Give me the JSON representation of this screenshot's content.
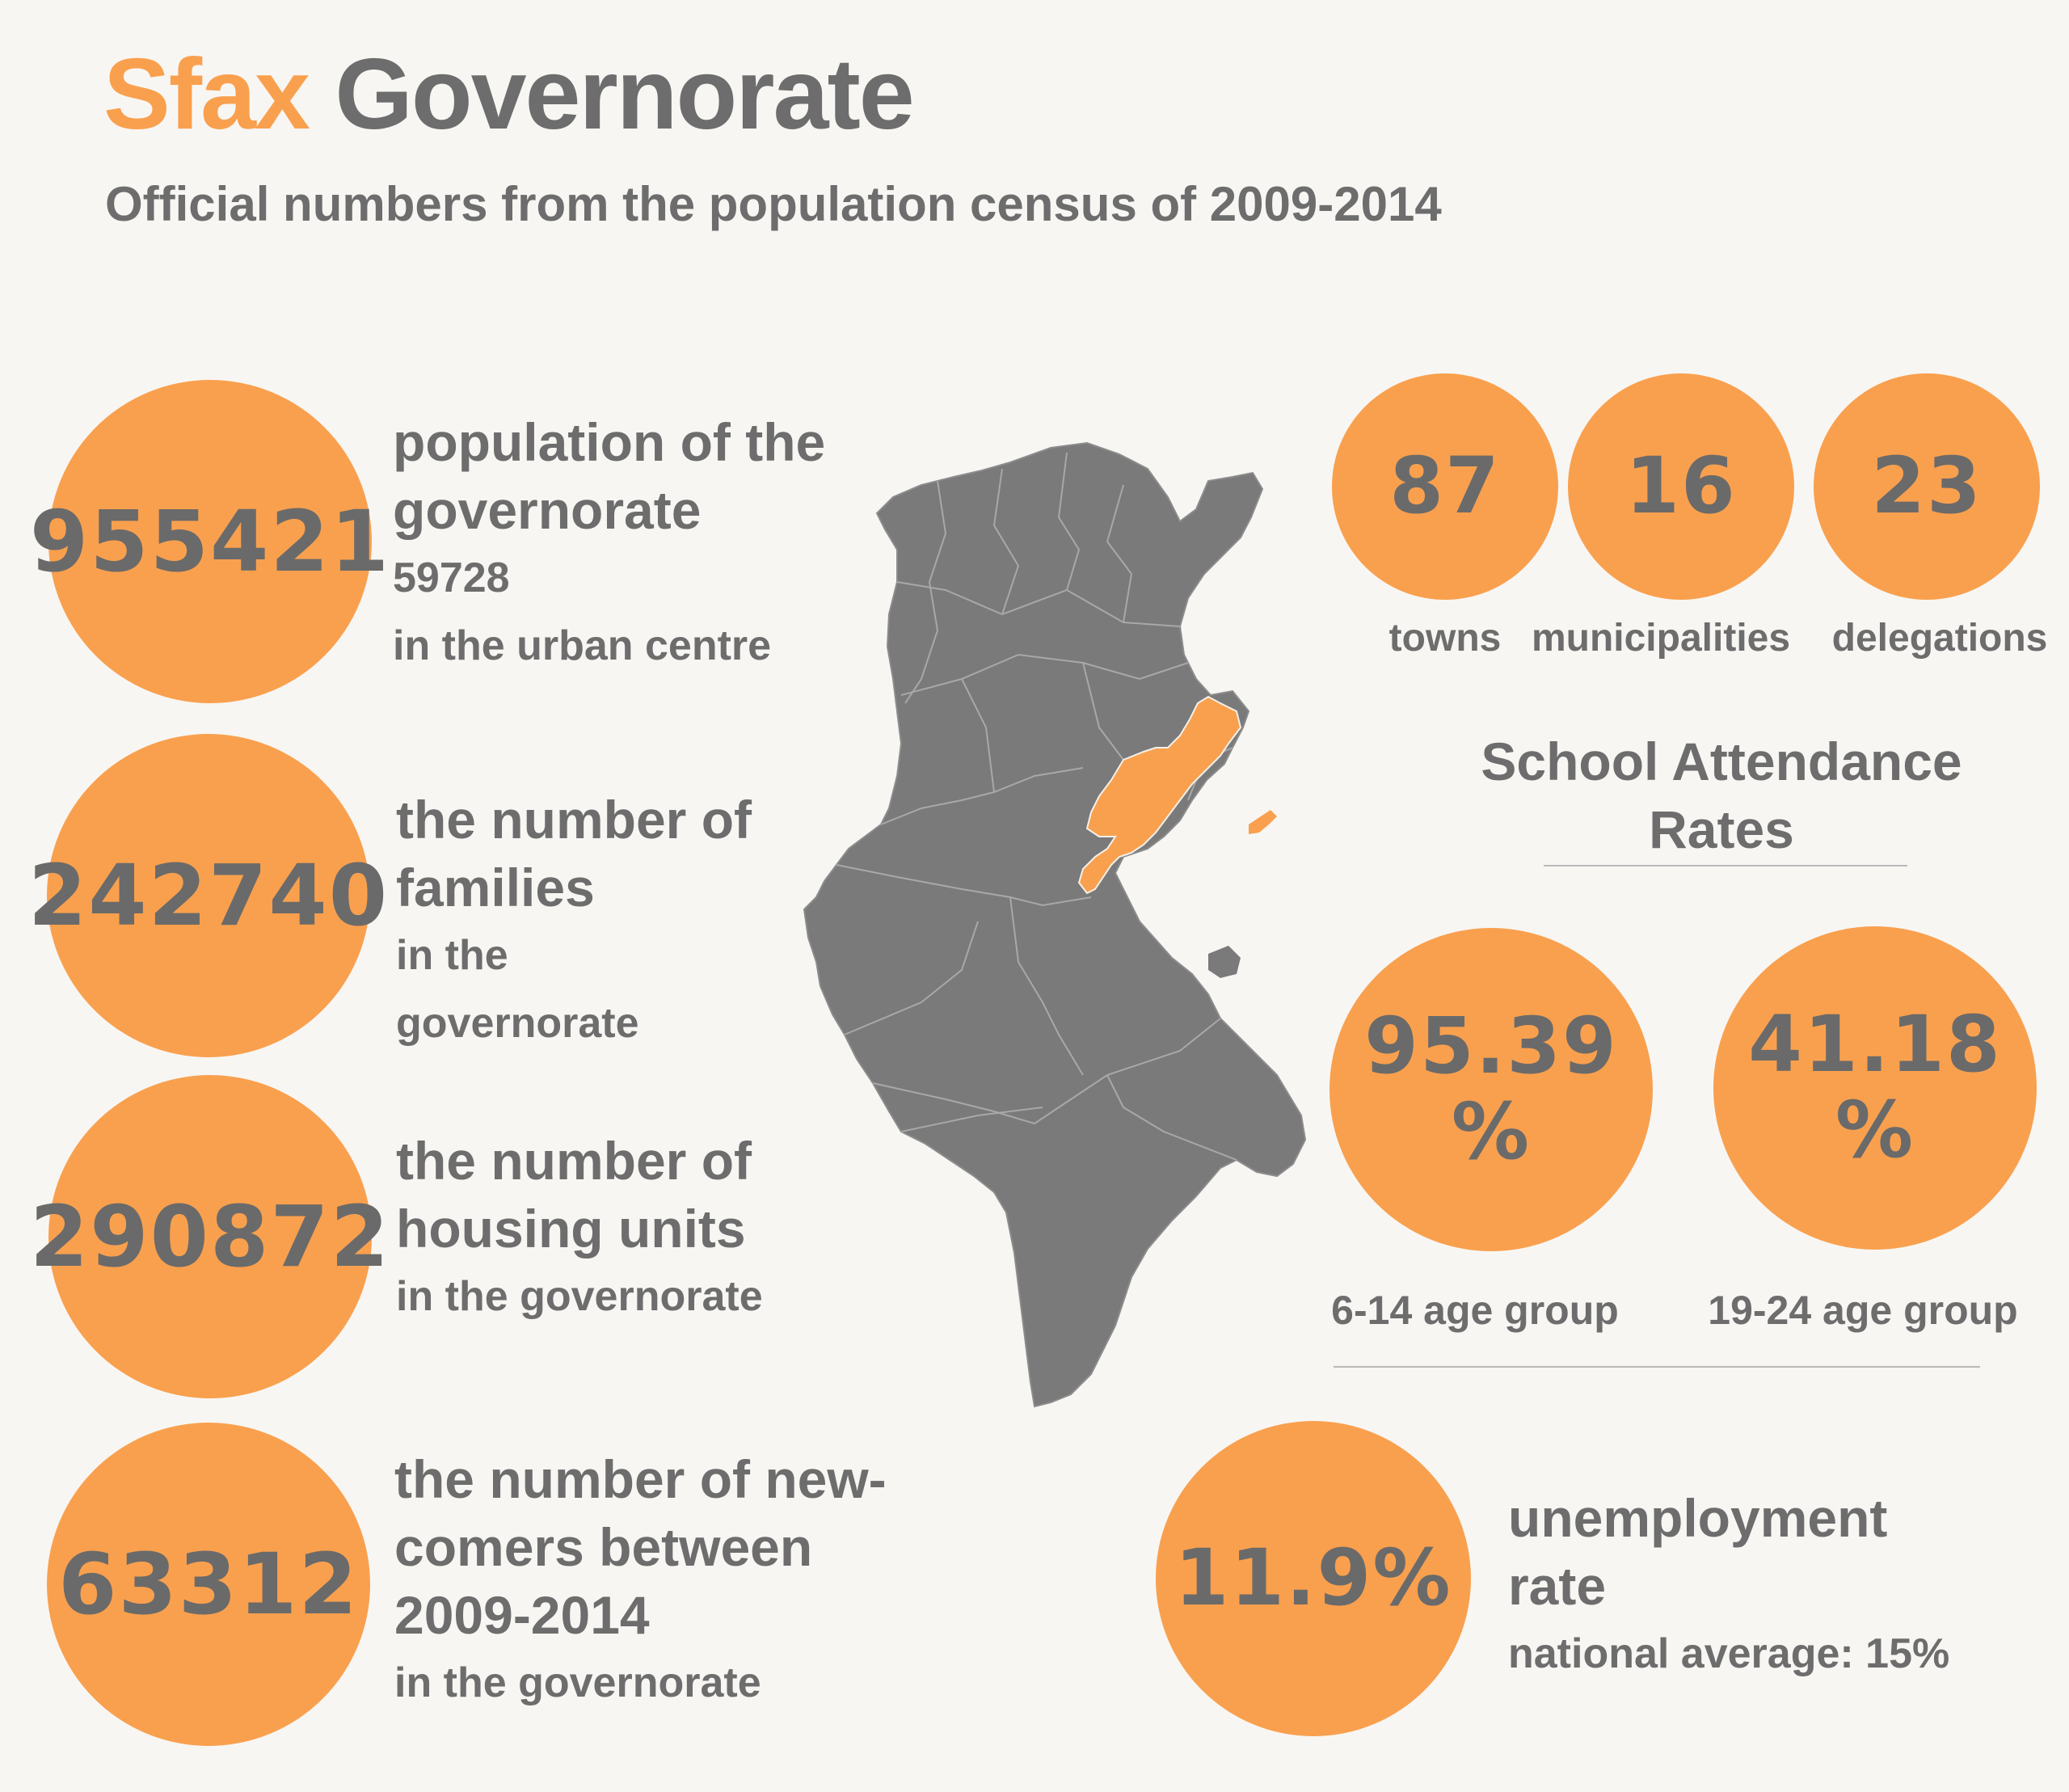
{
  "header": {
    "title_accent": "Sfax",
    "title_rest": "Governorate",
    "subtitle": "Official numbers from the population census of 2009-2014"
  },
  "stats_left": [
    {
      "value": "955421",
      "label_line1": "population of the",
      "label_line2": "governorate",
      "sub_line1": "59728",
      "sub_line2": "in the urban centre"
    },
    {
      "value": "242740",
      "label_line1": "the number of",
      "label_line2": "families",
      "sub_line1": "in the",
      "sub_line2": "governorate"
    },
    {
      "value": "290872",
      "label_line1": "the number of",
      "label_line2": "housing units",
      "sub_line1": "in the governorate"
    },
    {
      "value": "63312",
      "label_line1": "the number of new-",
      "label_line2": "comers between",
      "label_line3": "2009-2014",
      "sub_line1": "in the governorate"
    }
  ],
  "counts": [
    {
      "value": "87",
      "label": "towns"
    },
    {
      "value": "16",
      "label": "municipalities"
    },
    {
      "value": "23",
      "label": "delegations"
    }
  ],
  "school": {
    "heading_line1": "School Attendance",
    "heading_line2": "Rates",
    "items": [
      {
        "value": "95.39",
        "unit": "%",
        "label": "6-14 age group"
      },
      {
        "value": "41.18",
        "unit": "%",
        "label": "19-24 age group"
      }
    ]
  },
  "unemployment": {
    "value": "11.9%",
    "label_line1": "unemployment",
    "label_line2": "rate",
    "sub": "national average: 15%"
  },
  "map": {
    "country_color": "#7a7a7a",
    "highlight_color": "#f9a04e",
    "highlight_region": "Sfax"
  },
  "colors": {
    "accent": "#f9a04e",
    "text": "#6d6d6d",
    "background": "#f8f6f3"
  }
}
